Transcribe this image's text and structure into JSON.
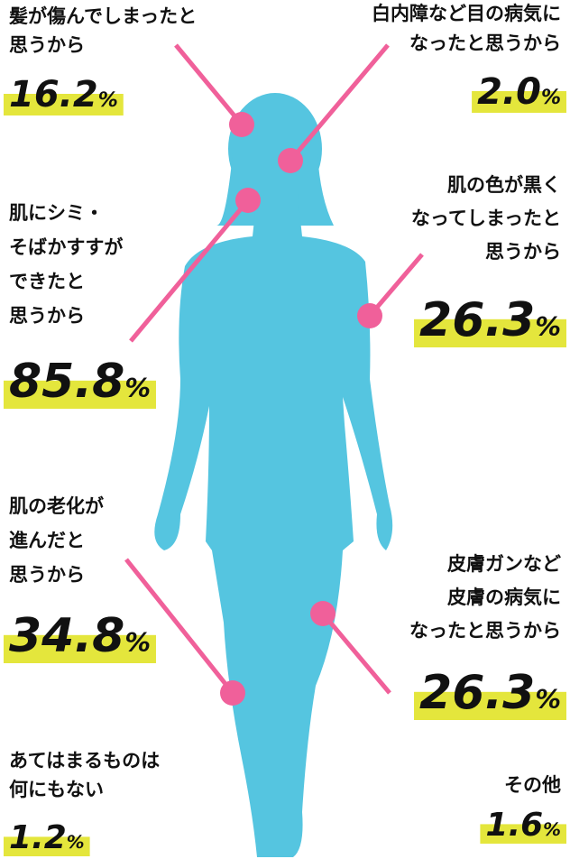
{
  "callouts": [
    {
      "lines": [
        "髪が傷んでしまったと",
        "思うから"
      ],
      "value": "16.2",
      "unit": "%"
    },
    {
      "lines": [
        "白内障など目の病気に",
        "なったと思うから"
      ],
      "value": "2.0",
      "unit": "%"
    },
    {
      "lines": [
        "肌にシミ・",
        "そばかすすが",
        "できたと",
        "思うから"
      ],
      "value": "85.8",
      "unit": "%"
    },
    {
      "lines": [
        "肌の色が黒く",
        "なってしまったと",
        "思うから"
      ],
      "value": "26.3",
      "unit": "%"
    },
    {
      "lines": [
        "肌の老化が",
        "進んだと",
        "思うから"
      ],
      "value": "34.8",
      "unit": "%"
    },
    {
      "lines": [
        "皮膚ガンなど",
        "皮膚の病気に",
        "なったと思うから"
      ],
      "value": "26.3",
      "unit": "%"
    },
    {
      "lines": [
        "あてはまるものは",
        "何にもない"
      ],
      "value": "1.2",
      "unit": "%"
    },
    {
      "lines": [
        "その他"
      ],
      "value": "1.6",
      "unit": "%"
    }
  ]
}
